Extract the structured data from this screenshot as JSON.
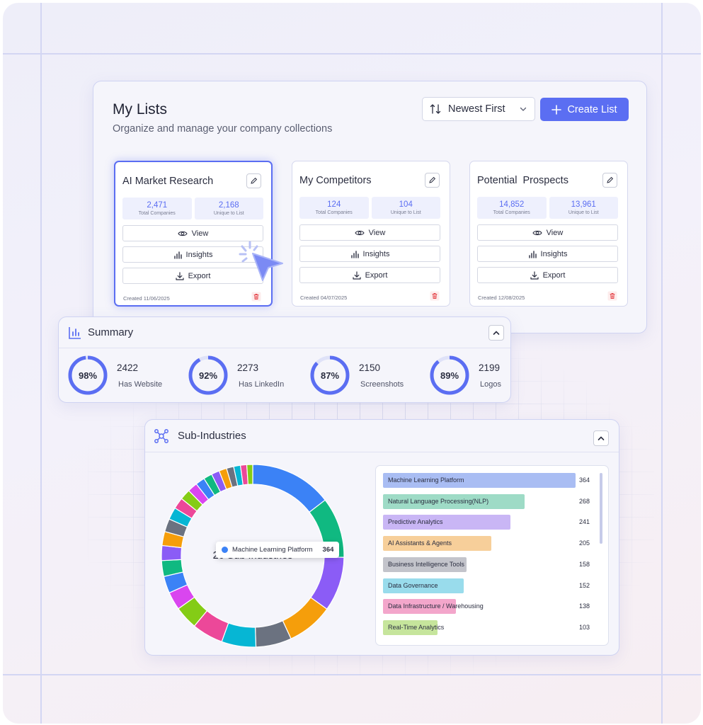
{
  "lists": {
    "title": "My Lists",
    "subtitle": "Organize and manage your company collections",
    "sort_label": "Newest First",
    "create_label": "Create List",
    "cards": [
      {
        "name": "AI Market Research",
        "total": "2,471",
        "total_caption": "Total Companies",
        "unique": "2,168",
        "unique_caption": "Unique to List",
        "view": "View",
        "insights": "Insights",
        "export": "Export",
        "created": "Created 11/06/2025"
      },
      {
        "name": "My Competitors",
        "total": "124",
        "total_caption": "Total Companies",
        "unique": "104",
        "unique_caption": "Unique to List",
        "view": "View",
        "insights": "Insights",
        "export": "Export",
        "created": "Created 04/07/2025"
      },
      {
        "name": "Potential  Prospects",
        "total": "14,852",
        "total_caption": "Total Companies",
        "unique": "13,961",
        "unique_caption": "Unique to List",
        "view": "View",
        "insights": "Insights",
        "export": "Export",
        "created": "Created 12/08/2025"
      }
    ]
  },
  "summary": {
    "title": "Summary",
    "metrics": [
      {
        "pct": "98%",
        "fraction": 0.98,
        "value": "2422",
        "caption": "Has Website"
      },
      {
        "pct": "92%",
        "fraction": 0.92,
        "value": "2273",
        "caption": "Has LinkedIn"
      },
      {
        "pct": "87%",
        "fraction": 0.87,
        "value": "2150",
        "caption": "Screenshots"
      },
      {
        "pct": "89%",
        "fraction": 0.89,
        "value": "2199",
        "caption": "Logos"
      }
    ]
  },
  "sub_industries": {
    "title": "Sub-Industries",
    "center_label": "26 Sub Industries",
    "tooltip": {
      "label": "Machine Learning Platform",
      "value": "364"
    },
    "bars": [
      {
        "label": "Machine Learning Platform",
        "value": 364,
        "color": "#a9bdf3"
      },
      {
        "label": "Natural Language Processing(NLP)",
        "value": 268,
        "color": "#9edbc6"
      },
      {
        "label": "Predictive Analytics",
        "value": 241,
        "color": "#c9b6f5"
      },
      {
        "label": "AI Assistants & Agents",
        "value": 205,
        "color": "#f7cf9a"
      },
      {
        "label": "Business Intelligence Tools",
        "value": 158,
        "color": "#c3c4cb"
      },
      {
        "label": "Data Governance",
        "value": 152,
        "color": "#99dcec"
      },
      {
        "label": "Data Infrastructure / Warehousing",
        "value": 138,
        "color": "#f3a6cb"
      },
      {
        "label": "Real-Time Analytics",
        "value": 103,
        "color": "#c6e59c"
      }
    ],
    "donut_segments": [
      {
        "value": 364,
        "color": "#3b82f6"
      },
      {
        "value": 268,
        "color": "#10b981"
      },
      {
        "value": 241,
        "color": "#8b5cf6"
      },
      {
        "value": 205,
        "color": "#f59e0b"
      },
      {
        "value": 158,
        "color": "#6b7280"
      },
      {
        "value": 152,
        "color": "#06b6d4"
      },
      {
        "value": 138,
        "color": "#ec4899"
      },
      {
        "value": 103,
        "color": "#84cc16"
      },
      {
        "value": 80,
        "color": "#d946ef"
      },
      {
        "value": 75,
        "color": "#3b82f6"
      },
      {
        "value": 70,
        "color": "#10b981"
      },
      {
        "value": 66,
        "color": "#8b5cf6"
      },
      {
        "value": 62,
        "color": "#f59e0b"
      },
      {
        "value": 58,
        "color": "#6b7280"
      },
      {
        "value": 54,
        "color": "#06b6d4"
      },
      {
        "value": 50,
        "color": "#ec4899"
      },
      {
        "value": 47,
        "color": "#84cc16"
      },
      {
        "value": 44,
        "color": "#d946ef"
      },
      {
        "value": 41,
        "color": "#3b82f6"
      },
      {
        "value": 38,
        "color": "#10b981"
      },
      {
        "value": 36,
        "color": "#8b5cf6"
      },
      {
        "value": 34,
        "color": "#f59e0b"
      },
      {
        "value": 32,
        "color": "#6b7280"
      },
      {
        "value": 30,
        "color": "#06b6d4"
      },
      {
        "value": 28,
        "color": "#ec4899"
      },
      {
        "value": 26,
        "color": "#84cc16"
      }
    ]
  },
  "colors": {
    "accent": "#5b6ef2",
    "delete": "#e5484d"
  }
}
